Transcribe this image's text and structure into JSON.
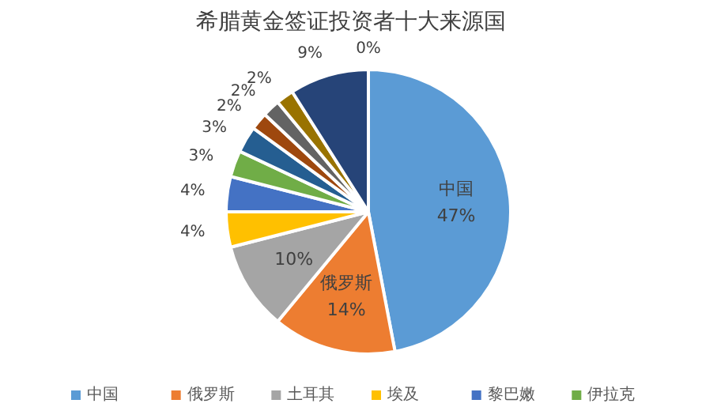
{
  "chart_data": {
    "type": "pie",
    "title": "希腊黄金签证投资者十大来源国",
    "categories": [
      "中国",
      "俄罗斯",
      "土耳其",
      "埃及",
      "黎巴嫩",
      "伊拉克",
      null,
      null,
      null,
      null,
      null,
      null
    ],
    "values": [
      47,
      14,
      10,
      4,
      4,
      3,
      3,
      2,
      2,
      2,
      9,
      0
    ],
    "colors": [
      "#5b9bd5",
      "#ed7d31",
      "#a5a5a5",
      "#ffc000",
      "#4472c4",
      "#70ad47",
      "#255e91",
      "#9e480e",
      "#636363",
      "#997300",
      "#264478",
      "#43682b"
    ],
    "value_labels": [
      "47%",
      "14%",
      "10%",
      "4%",
      "4%",
      "3%",
      "3%",
      "2%",
      "2%",
      "2%",
      "9%",
      "0%"
    ],
    "legend": "bottom"
  }
}
